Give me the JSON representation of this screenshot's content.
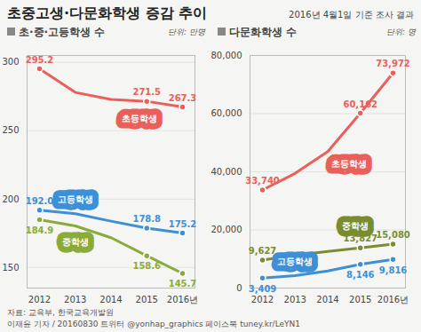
{
  "title": "초중고생·다문화학생 증감 추이",
  "subtitle": "2016년 4월1일 기준 조사 결과",
  "source": "자료: 교육부, 한국교육개발원",
  "credit": "이재윤 기자 / 20160830  트위터 @yonhap_graphics  페이스북 tuney.kr/LeYN1",
  "chart_data": [
    {
      "type": "line",
      "title": "초·중·고등학생 수",
      "ylabel": "단위: 만명",
      "x": [
        2012,
        2013,
        2014,
        2015,
        2016
      ],
      "xlim": [
        2012,
        2016
      ],
      "xticks": [
        2012,
        2013,
        2014,
        2015,
        {
          "value": 2016,
          "label": "2016년"
        }
      ],
      "ylim": [
        135,
        305
      ],
      "yticks": [
        150,
        200,
        250,
        300
      ],
      "grid": true,
      "data_labels": true,
      "marker": "circle",
      "series": [
        {
          "name": "초등학생",
          "color": "#e9605b",
          "values": [
            295.2,
            278.0,
            272.9,
            271.5,
            267.3
          ],
          "value_labels": [
            "295.2",
            null,
            null,
            "271.5",
            "267.3"
          ]
        },
        {
          "name": "고등학생",
          "color": "#3d8fd6",
          "values": [
            192.0,
            189.4,
            183.9,
            178.8,
            175.2
          ],
          "value_labels": [
            "192.0",
            null,
            null,
            "178.8",
            "175.2"
          ]
        },
        {
          "name": "중학생",
          "color": "#8aab3a",
          "values": [
            184.9,
            180.4,
            171.8,
            158.6,
            145.7
          ],
          "value_labels": [
            "184.9",
            null,
            null,
            "158.6",
            "145.7"
          ]
        }
      ]
    },
    {
      "type": "line",
      "title": "다문화학생 수",
      "ylabel": "단위: 명",
      "x": [
        2012,
        2013,
        2014,
        2015,
        2016
      ],
      "xlim": [
        2012,
        2016
      ],
      "xticks": [
        2012,
        2013,
        2014,
        2015,
        {
          "value": 2016,
          "label": "2016년"
        }
      ],
      "ylim": [
        0,
        80000
      ],
      "yticks": [
        0,
        {
          "value": 20000,
          "label": "20,000"
        },
        {
          "value": 40000,
          "label": "40,000"
        },
        {
          "value": 60000,
          "label": "60,000"
        },
        {
          "value": 80000,
          "label": "80,000"
        }
      ],
      "grid": true,
      "data_labels": true,
      "marker": "circle",
      "series": [
        {
          "name": "초등학생",
          "color": "#e9605b",
          "values": [
            33740,
            39430,
            46954,
            60162,
            73972
          ],
          "value_labels": [
            "33,740",
            null,
            null,
            "60,162",
            "73,972"
          ]
        },
        {
          "name": "중학생",
          "color": "#7a8c2e",
          "values": [
            9627,
            11300,
            12600,
            13827,
            15080
          ],
          "value_labels": [
            "9,627",
            null,
            null,
            "13,827",
            "15,080"
          ]
        },
        {
          "name": "고등학생",
          "color": "#3d8fd6",
          "values": [
            3409,
            4300,
            5900,
            8146,
            9816
          ],
          "value_labels": [
            "3,409",
            null,
            null,
            "8,146",
            "9,816"
          ]
        }
      ]
    }
  ]
}
